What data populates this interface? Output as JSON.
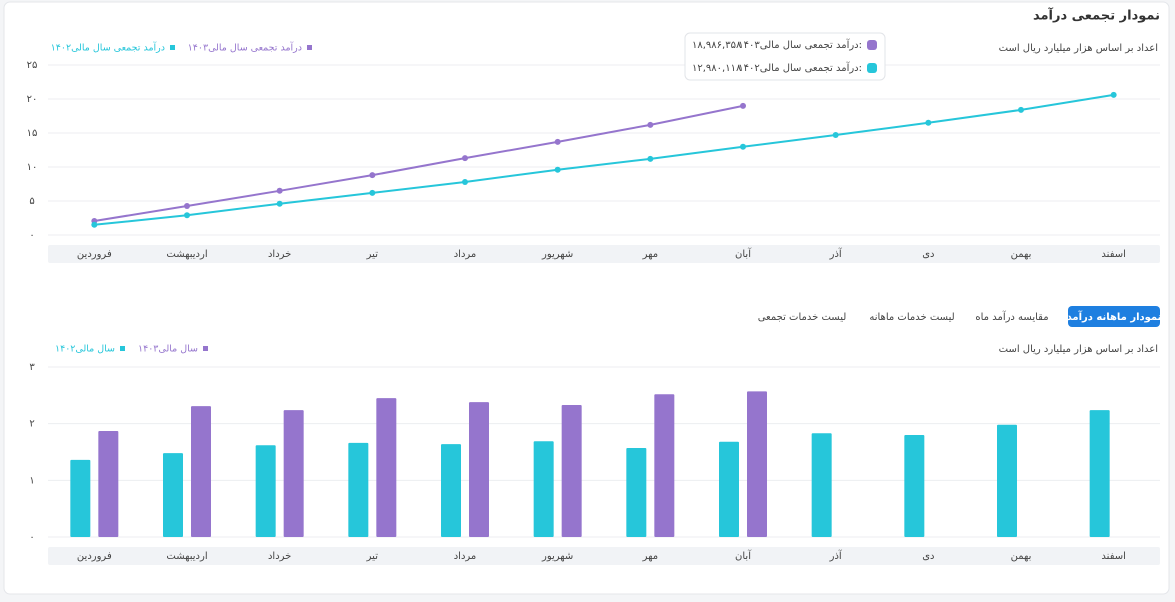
{
  "tabs": [
    "نمودار ماهانه درآمد",
    "مقایسه درآمد ماه",
    "لیست خدمات ماهانه",
    "لیست خدمات تجمعی"
  ],
  "chart_data": [
    {
      "type": "line",
      "title": "نمودار تجمعی درآمد",
      "subtitle": "اعداد بر اساس هزار میلیارد ریال است",
      "categories": [
        "فروردین",
        "اردیبهشت",
        "خرداد",
        "تیر",
        "مرداد",
        "شهریور",
        "مهر",
        "آبان",
        "آذر",
        "دی",
        "بهمن",
        "اسفند"
      ],
      "series": [
        {
          "name": "درآمد تجمعی سال مالی۱۴۰۳",
          "color": "#9575cd",
          "values": [
            2.06,
            4.26,
            6.5,
            8.8,
            11.3,
            13.7,
            16.2,
            18.99,
            null,
            null,
            null,
            null
          ]
        },
        {
          "name": "درآمد تجمعی سال مالی۱۴۰۲",
          "color": "#26c6da",
          "values": [
            1.5,
            2.9,
            4.6,
            6.2,
            7.8,
            9.6,
            11.2,
            12.98,
            14.7,
            16.5,
            18.4,
            20.6
          ]
        }
      ],
      "tooltip": [
        {
          "label": "درآمد تجمعی سال مالی۱۴۰۳:",
          "value": "۱۸,۹۸۶,۳۵۸"
        },
        {
          "label": "درآمد تجمعی سال مالی۱۴۰۲:",
          "value": "۱۲,۹۸۰,۱۱۸"
        }
      ],
      "ylim": [
        0,
        25
      ],
      "yticks": [
        {
          "value": 0,
          "label": "۰"
        },
        {
          "value": 5,
          "label": "۵"
        },
        {
          "value": 10,
          "label": "۱۰"
        },
        {
          "value": 15,
          "label": "۱۵"
        },
        {
          "value": 20,
          "label": "۲۰"
        },
        {
          "value": 25,
          "label": "۲۵"
        }
      ],
      "grid": true
    },
    {
      "type": "bar",
      "subtitle": "اعداد بر اساس هزار میلیارد ریال است",
      "categories": [
        "فروردین",
        "اردیبهشت",
        "خرداد",
        "تیر",
        "مرداد",
        "شهریور",
        "مهر",
        "آبان",
        "آذر",
        "دی",
        "بهمن",
        "اسفند"
      ],
      "series": [
        {
          "name": "سال مالی۱۴۰۳",
          "color": "#9575cd",
          "values": [
            1.87,
            2.31,
            2.24,
            2.45,
            2.38,
            2.33,
            2.52,
            2.57,
            null,
            null,
            null,
            null
          ]
        },
        {
          "name": "سال مالی۱۴۰۲",
          "color": "#26c6da",
          "values": [
            1.36,
            1.48,
            1.62,
            1.66,
            1.64,
            1.69,
            1.57,
            1.68,
            1.83,
            1.8,
            1.98,
            2.24
          ]
        }
      ],
      "ylim": [
        0,
        3
      ],
      "yticks": [
        {
          "value": 0,
          "label": "۰"
        },
        {
          "value": 1,
          "label": "۱"
        },
        {
          "value": 2,
          "label": "۲"
        },
        {
          "value": 3,
          "label": "۳"
        }
      ],
      "grid": true
    }
  ]
}
